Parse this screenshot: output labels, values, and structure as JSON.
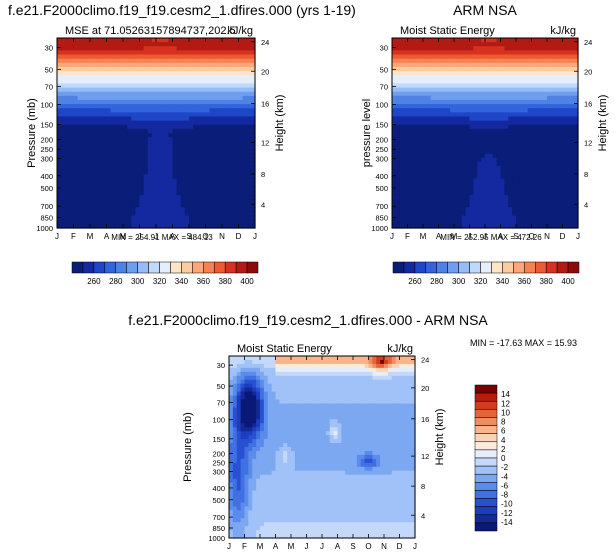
{
  "palette": {
    "mse": [
      "#0a1d78",
      "#1428a0",
      "#1e46c8",
      "#3264dc",
      "#5082e6",
      "#6e9ef0",
      "#96bcf6",
      "#c0d8fa",
      "#e6eefc",
      "#fde6c8",
      "#fccca0",
      "#faa878",
      "#f58250",
      "#ee5a32",
      "#d6321e",
      "#b41a14",
      "#8c0a0a"
    ],
    "diff": [
      "#0a1978",
      "#142896",
      "#1e3cbe",
      "#2850d2",
      "#4170e1",
      "#5a8cec",
      "#7ca8f2",
      "#a0c2f8",
      "#c4d8fa",
      "#e6eefc",
      "#fceadc",
      "#fad2b4",
      "#f8b48c",
      "#f08c64",
      "#e6643c",
      "#d23c1e",
      "#b41e0a",
      "#7a0000"
    ]
  },
  "panels": [
    {
      "id": "model",
      "title": "f.e21.F2000climo.f19_f19.cesm2_1.dfires.000 (yrs 1-19)",
      "left_label": "MSE at 71.05263157894737,202.5",
      "right_label": "kJ/kg",
      "ylabel": "Pressure (mb)",
      "ylabel2": "Height (km)",
      "stats": "MIN = 254.91 MAX = 484.13",
      "chart_data": {
        "type": "heatmap",
        "x_categories": [
          "J",
          "F",
          "M",
          "A",
          "M",
          "J",
          "J",
          "A",
          "S",
          "O",
          "N",
          "D",
          "J"
        ],
        "y_ticks": [
          "30",
          "50",
          "70",
          "100",
          "150",
          "200",
          "250",
          "300",
          "400",
          "500",
          "700",
          "850",
          "1000"
        ],
        "y_ticks2": [
          "24",
          "20",
          "16",
          "12",
          "8",
          "4"
        ],
        "colorbar_levels": [
          250,
          260,
          270,
          280,
          290,
          300,
          310,
          320,
          330,
          340,
          350,
          360,
          370,
          380,
          390,
          400,
          410
        ],
        "colorbar_labels": [
          "260",
          "280",
          "300",
          "320",
          "340",
          "360",
          "380",
          "400"
        ],
        "min": 254.91,
        "max": 484.13
      }
    },
    {
      "id": "obs",
      "title": "ARM NSA",
      "left_label": "Moist Static Energy",
      "right_label": "kJ/kg",
      "ylabel": "pressure level",
      "ylabel2": "Height (km)",
      "stats": "MIN = 252.95 MAX = 472.26",
      "chart_data": {
        "type": "heatmap",
        "x_categories": [
          "J",
          "F",
          "M",
          "A",
          "M",
          "J",
          "J",
          "A",
          "S",
          "O",
          "N",
          "D",
          "J"
        ],
        "y_ticks": [
          "30",
          "50",
          "70",
          "100",
          "150",
          "200",
          "250",
          "300",
          "400",
          "500",
          "700",
          "850",
          "1000"
        ],
        "y_ticks2": [
          "24",
          "20",
          "16",
          "12",
          "8",
          "4"
        ],
        "colorbar_levels": [
          250,
          260,
          270,
          280,
          290,
          300,
          310,
          320,
          330,
          340,
          350,
          360,
          370,
          380,
          390,
          400,
          410
        ],
        "colorbar_labels": [
          "260",
          "280",
          "300",
          "320",
          "340",
          "360",
          "380",
          "400"
        ],
        "min": 252.95,
        "max": 472.26
      }
    },
    {
      "id": "diff",
      "title": "f.e21.F2000climo.f19_f19.cesm2_1.dfires.000 - ARM NSA",
      "left_label": "Moist Static Energy",
      "right_label": "kJ/kg",
      "ylabel": "Pressure (mb)",
      "ylabel2": "Height (km)",
      "stats": "MIN = -17.63 MAX =  15.93",
      "chart_data": {
        "type": "heatmap",
        "x_categories": [
          "J",
          "F",
          "M",
          "A",
          "M",
          "J",
          "J",
          "A",
          "S",
          "O",
          "N",
          "D",
          "J"
        ],
        "y_ticks": [
          "30",
          "50",
          "70",
          "100",
          "150",
          "200",
          "250",
          "300",
          "400",
          "500",
          "700",
          "850",
          "1000"
        ],
        "y_ticks2": [
          "24",
          "20",
          "16",
          "12",
          "8",
          "4"
        ],
        "colorbar_levels": [
          -16,
          -14,
          -12,
          -10,
          -8,
          -6,
          -4,
          -2,
          0,
          2,
          4,
          6,
          8,
          10,
          12,
          14,
          16
        ],
        "colorbar_labels": [
          "14",
          "12",
          "10",
          "8",
          "6",
          "4",
          "2",
          "0",
          "-2",
          "-4",
          "-6",
          "-8",
          "-10",
          "-12",
          "-14"
        ],
        "min": -17.63,
        "max": 15.93
      }
    }
  ]
}
